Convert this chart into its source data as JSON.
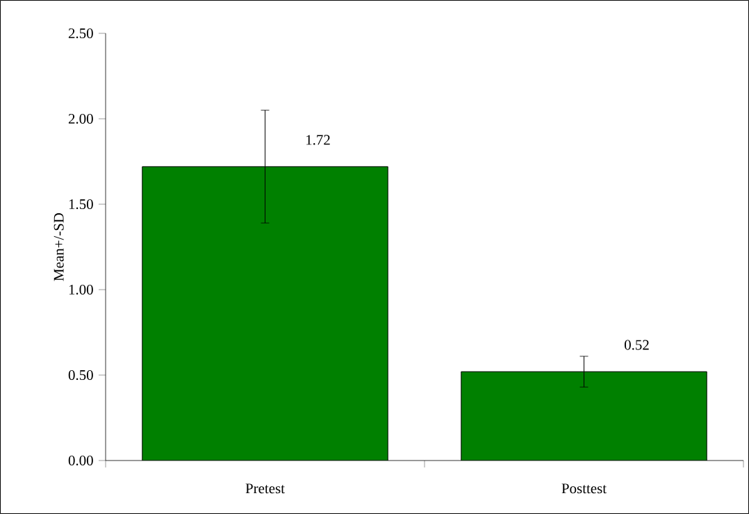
{
  "chart_data": {
    "type": "bar",
    "ylabel": "Mean+/-SD",
    "categories": [
      "Pretest",
      "Posttest"
    ],
    "values": [
      1.72,
      0.52
    ],
    "errors": [
      0.33,
      0.09
    ],
    "color": "#008000",
    "data_labels": true,
    "ylim": [
      0,
      2.5
    ],
    "yticks": [
      {
        "value": 0,
        "label": "0.00"
      },
      {
        "value": 0.5,
        "label": "0.50"
      },
      {
        "value": 1,
        "label": "1.00"
      },
      {
        "value": 1.5,
        "label": "1.50"
      },
      {
        "value": 2,
        "label": "2.00"
      },
      {
        "value": 2.5,
        "label": "2.50"
      }
    ],
    "grid": false
  }
}
